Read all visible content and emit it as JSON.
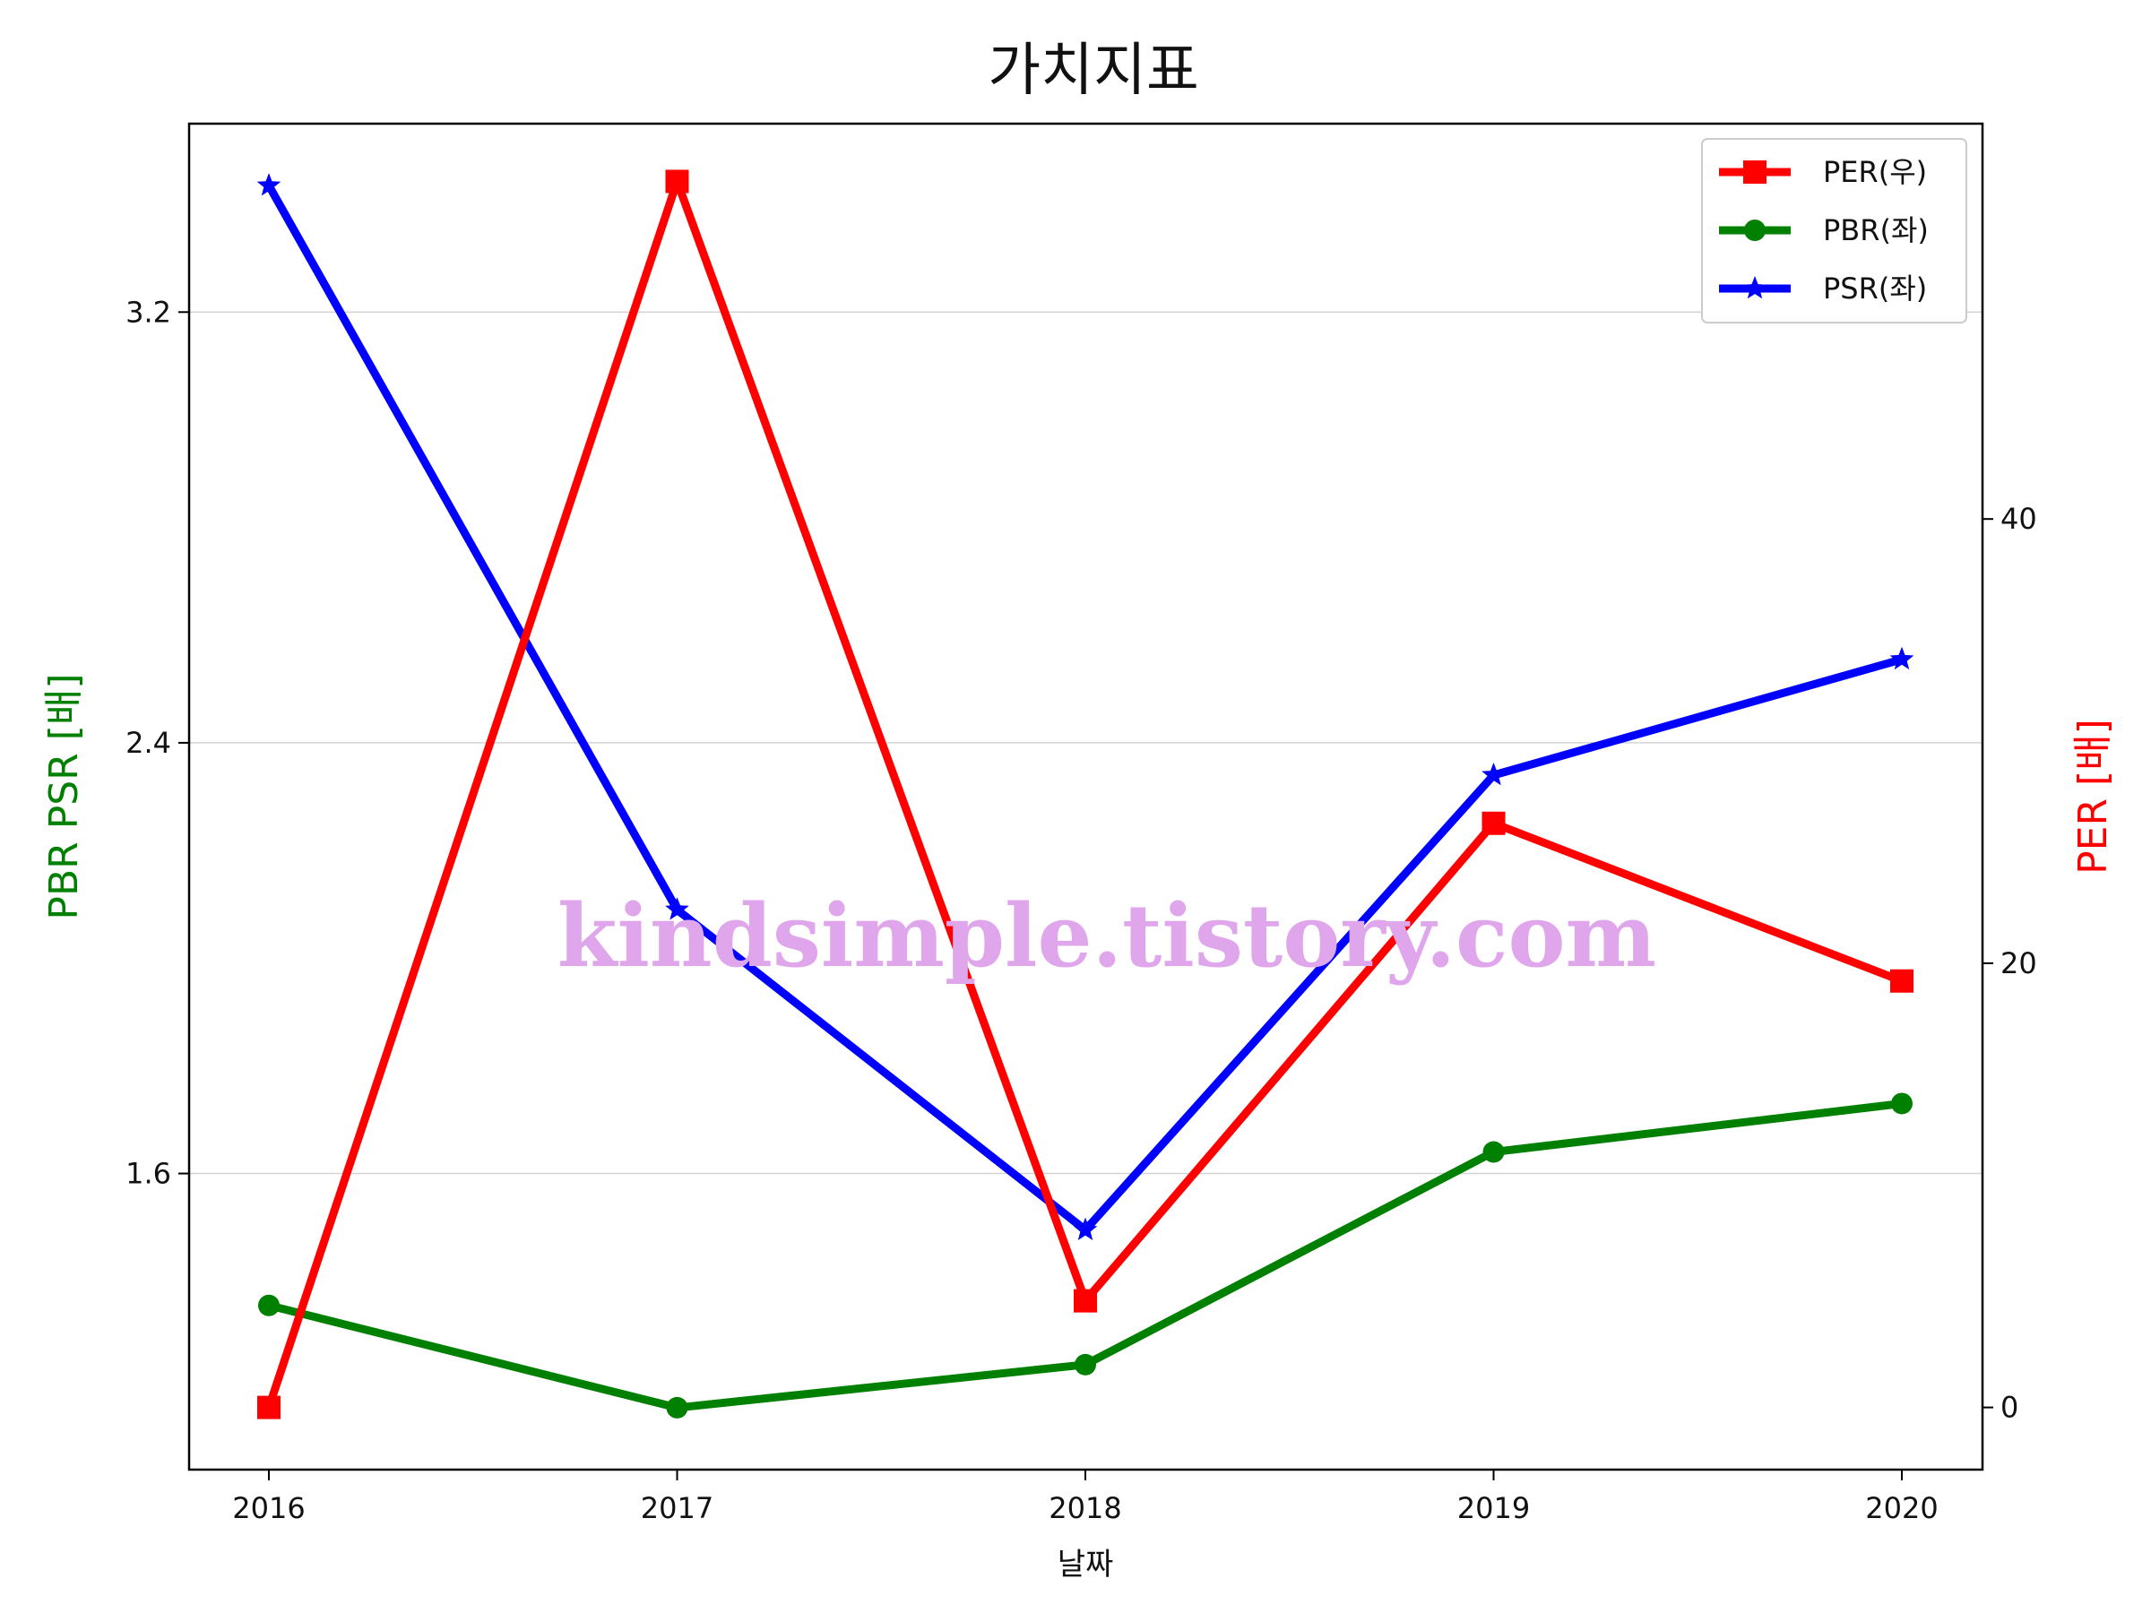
{
  "chart_data": {
    "type": "line",
    "title": "가치지표",
    "xlabel": "날짜",
    "ylabel_left": "PBR PSR [배]",
    "ylabel_right": "PER [배]",
    "categories": [
      "2016",
      "2017",
      "2018",
      "2019",
      "2020"
    ],
    "left_axis": {
      "ticks": [
        "1.6",
        "2.4",
        "3.2"
      ],
      "range": [
        1.05,
        3.55
      ]
    },
    "right_axis": {
      "ticks": [
        "0",
        "20",
        "40"
      ],
      "range": [
        -2.8,
        57.8
      ]
    },
    "grid": "horizontal-left-axis",
    "legend_position": "top-right",
    "series": [
      {
        "name": "PER(우)",
        "axis": "right",
        "color": "#ff0000",
        "marker": "square",
        "values": [
          0,
          55.2,
          4.8,
          26.3,
          19.2
        ]
      },
      {
        "name": "PBR(좌)",
        "axis": "left",
        "color": "#008000",
        "marker": "circle",
        "values": [
          1.355,
          1.165,
          1.245,
          1.64,
          1.73
        ]
      },
      {
        "name": "PSR(좌)",
        "axis": "left",
        "color": "#0000ff",
        "marker": "star",
        "values": [
          3.435,
          2.09,
          1.495,
          2.34,
          2.555
        ]
      }
    ]
  },
  "watermark": "kindsimple.tistory.com"
}
